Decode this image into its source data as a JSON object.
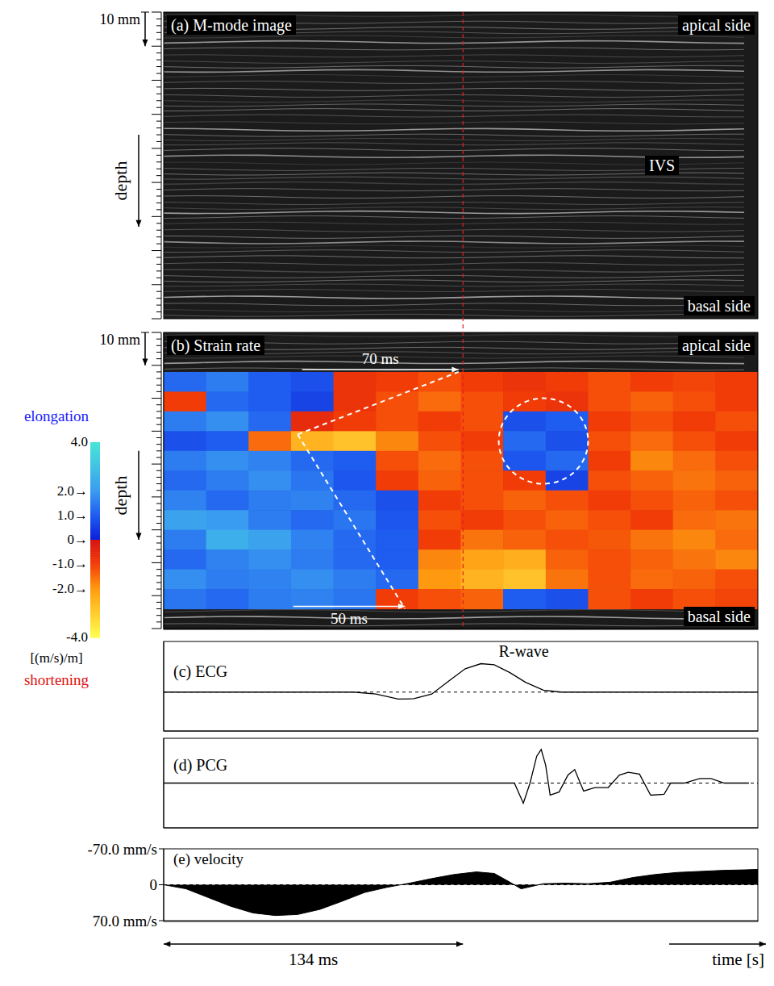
{
  "chart_data": [
    {
      "type": "image",
      "title": "(a) M-mode image",
      "xlim": [
        0,
        266
      ],
      "ylim": [
        90,
        0
      ],
      "tick_labels": false,
      "ylabel": "depth",
      "top_label": "apical side",
      "bottom_label": "basal side",
      "region_label": "IVS",
      "scale_bar": {
        "label": "10 mm",
        "value": 10
      }
    },
    {
      "type": "heatmap",
      "title": "(b) Strain rate",
      "xlim": [
        0,
        266
      ],
      "ylim": [
        90,
        0
      ],
      "tick_labels": false,
      "ylabel": "depth",
      "top_label": "apical side",
      "bottom_label": "basal side",
      "scale_bar": {
        "label": "10 mm",
        "value": 10
      },
      "x": [
        9.5,
        28.5,
        47.5,
        66.5,
        85.5,
        104.5,
        123.5,
        142.5,
        161.5,
        180.5,
        199.5,
        218.5,
        237.5,
        256.5
      ],
      "y": [
        15,
        21,
        27,
        33,
        39,
        45,
        51,
        57,
        63,
        69,
        75,
        81
      ],
      "cells": [
        [
          1.2,
          1.5,
          1.0,
          0.8,
          -0.8,
          -1.0,
          -1.2,
          -1.0,
          -0.8,
          -1.0,
          -1.2,
          -1.0,
          -1.1,
          -1.0
        ],
        [
          -1.0,
          1.2,
          1.0,
          0.6,
          -0.8,
          -1.2,
          -1.5,
          -1.2,
          -1.0,
          -0.8,
          -1.2,
          -1.4,
          -1.2,
          -1.0
        ],
        [
          1.5,
          1.8,
          1.2,
          -0.6,
          -1.0,
          -1.2,
          -1.0,
          -1.2,
          0.8,
          1.0,
          -1.0,
          -1.2,
          -1.0,
          -1.2
        ],
        [
          0.8,
          1.0,
          -1.5,
          -2.5,
          -2.8,
          -1.8,
          -1.2,
          -1.0,
          1.2,
          0.8,
          -1.2,
          -1.5,
          -1.2,
          -1.0
        ],
        [
          1.5,
          1.8,
          1.6,
          1.2,
          1.0,
          -1.2,
          -1.5,
          -1.2,
          0.9,
          1.2,
          -1.0,
          -1.8,
          -1.5,
          -1.2
        ],
        [
          1.2,
          1.5,
          1.8,
          1.4,
          0.9,
          -1.0,
          -1.4,
          -1.2,
          -1.0,
          0.6,
          -1.2,
          -1.4,
          -1.6,
          -1.4
        ],
        [
          1.6,
          1.2,
          1.5,
          1.6,
          1.2,
          0.8,
          -1.0,
          -1.2,
          -1.4,
          -1.2,
          -1.0,
          -1.2,
          -1.4,
          -1.2
        ],
        [
          2.2,
          2.0,
          1.5,
          1.2,
          1.4,
          0.9,
          -1.2,
          -1.0,
          -1.2,
          -1.4,
          -1.2,
          -1.0,
          -1.5,
          -1.6
        ],
        [
          1.5,
          2.5,
          2.2,
          1.6,
          1.2,
          1.0,
          -1.0,
          -1.6,
          -1.4,
          -1.2,
          -1.3,
          -1.6,
          -1.8,
          -1.5
        ],
        [
          1.2,
          1.6,
          1.8,
          1.5,
          1.2,
          1.0,
          -1.8,
          -2.2,
          -2.4,
          -1.4,
          -1.2,
          -1.4,
          -1.6,
          -1.8
        ],
        [
          1.8,
          1.5,
          1.6,
          1.8,
          1.5,
          1.2,
          -2.0,
          -2.5,
          -2.8,
          -1.6,
          -1.2,
          -1.5,
          -1.4,
          -1.2
        ],
        [
          1.4,
          1.2,
          1.5,
          1.6,
          1.4,
          -1.0,
          -1.2,
          -1.4,
          1.0,
          0.8,
          -1.2,
          -1.0,
          -1.2,
          -1.1
        ]
      ],
      "colorbar": {
        "range": [
          -4,
          4
        ],
        "ticks": [
          {
            "value": 4,
            "label": "4.0"
          },
          {
            "value": 2,
            "label": "2.0→"
          },
          {
            "value": 1,
            "label": "1.0→"
          },
          {
            "value": 0,
            "label": "0→"
          },
          {
            "value": -1,
            "label": "-1.0→"
          },
          {
            "value": -2,
            "label": "-2.0→"
          },
          {
            "value": -4,
            "label": "-4.0"
          }
        ],
        "label": "[(m/s)/m]",
        "top_label": "elongation",
        "bottom_label": "shortening"
      },
      "arrows": [
        {
          "label": "70 ms",
          "from": 62,
          "duration": 70
        },
        {
          "label": "50 ms",
          "from": 58,
          "duration": 50
        }
      ],
      "wave_origin": {
        "x": 60,
        "y": 31
      },
      "highlight": {
        "x": [
          150,
          190
        ],
        "y": [
          20,
          46
        ]
      }
    },
    {
      "type": "line",
      "title": "(c) ECG",
      "annotation": "R-wave",
      "x": [
        0,
        85,
        95,
        105,
        112,
        120,
        128,
        135,
        142,
        148,
        155,
        162,
        170,
        178,
        190,
        200,
        230,
        266
      ],
      "values": [
        0,
        0,
        -0.05,
        -0.18,
        -0.17,
        -0.05,
        0.3,
        0.6,
        0.73,
        0.7,
        0.5,
        0.25,
        0.05,
        0,
        0,
        0,
        0,
        0
      ],
      "xlim": [
        0,
        266
      ],
      "ylim": [
        -1,
        1.3
      ],
      "baseline": 0,
      "tick_labels": false,
      "color": "#000000"
    },
    {
      "type": "line",
      "title": "(d) PCG",
      "x": [
        0,
        157,
        161,
        164,
        167,
        169,
        171,
        173,
        177,
        181,
        184,
        188,
        193,
        199,
        204,
        208,
        213,
        218,
        224,
        227,
        233,
        240,
        245,
        251,
        262
      ],
      "values": [
        0,
        0,
        -0.45,
        0,
        0.6,
        0.75,
        0.4,
        -0.27,
        -0.2,
        0.18,
        0.3,
        -0.18,
        -0.1,
        -0.1,
        0.18,
        0.24,
        0.2,
        -0.27,
        -0.25,
        0,
        0,
        0.1,
        0.1,
        0,
        0
      ],
      "xlim": [
        0,
        266
      ],
      "ylim": [
        -1,
        1
      ],
      "baseline": 0,
      "tick_labels": false,
      "color": "#000000"
    },
    {
      "type": "area",
      "title": "(e) velocity",
      "xlabel": "time [s]",
      "x": [
        0,
        10,
        20,
        30,
        40,
        50,
        60,
        70,
        80,
        90,
        100,
        110,
        120,
        130,
        140,
        148,
        155,
        160,
        165,
        170,
        180,
        190,
        200,
        210,
        220,
        230,
        240,
        250,
        260,
        266
      ],
      "values": [
        0,
        8,
        25,
        42,
        55,
        60,
        58,
        48,
        32,
        15,
        5,
        -3,
        -12,
        -20,
        -25,
        -22,
        -5,
        8,
        3,
        -2,
        -3,
        -2,
        -5,
        -14,
        -20,
        -24,
        -26,
        -28,
        -29,
        -30
      ],
      "xlim": [
        0,
        266
      ],
      "ylim": [
        70,
        -70
      ],
      "yticks": [
        {
          "value": -70,
          "label": "-70.0 mm/s"
        },
        0,
        {
          "value": 70,
          "label": "70.0 mm/s"
        }
      ],
      "baseline": 0,
      "tick_labels": "y",
      "color": "#000000",
      "arrows": [
        {
          "label": "134 ms",
          "from": 0,
          "duration": 134
        }
      ]
    }
  ]
}
